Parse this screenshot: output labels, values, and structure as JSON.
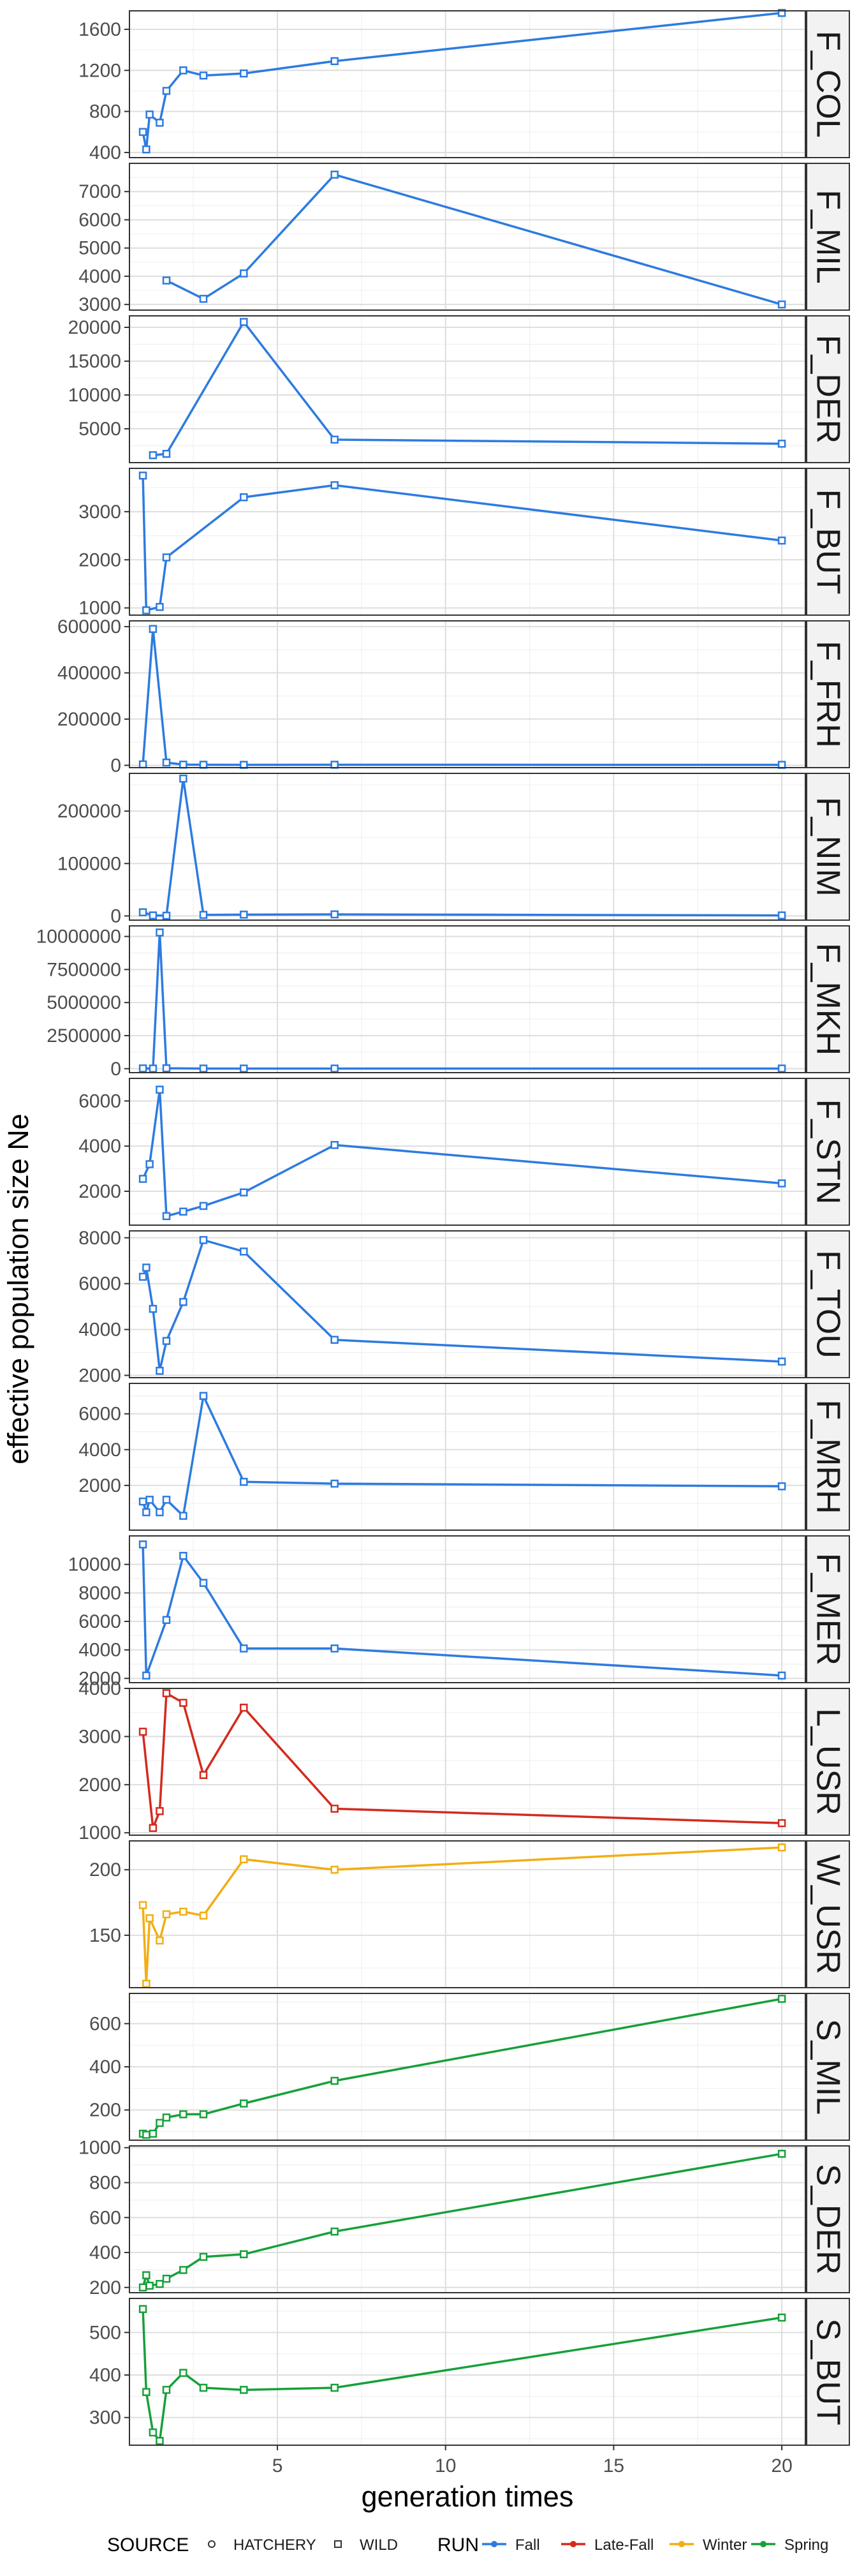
{
  "chart_data": {
    "type": "line",
    "layout": "faceted, vertical stack, one panel per population, shared x axis, free y scales",
    "xlabel": "generation times",
    "ylabel": "effective population size Ne",
    "x_ticks": [
      5,
      10,
      15,
      20
    ],
    "xlim": [
      0.6,
      20.7
    ],
    "grid": true,
    "legend": {
      "placement": "bottom",
      "source_title": "SOURCE",
      "source_entries": [
        {
          "label": "HATCHERY",
          "marker": "circle"
        },
        {
          "label": "WILD",
          "marker": "square"
        }
      ],
      "run_title": "RUN",
      "run_entries": [
        {
          "label": "Fall",
          "color": "#2D7BE0"
        },
        {
          "label": "Late-Fall",
          "color": "#D42A1E"
        },
        {
          "label": "Winter",
          "color": "#F2AE14"
        },
        {
          "label": "Spring",
          "color": "#17A03A"
        }
      ]
    },
    "panels": [
      {
        "name": "F_COL",
        "run": "Fall",
        "y_ticks": [
          400,
          800,
          1200,
          1600
        ],
        "ylim": [
          350,
          1780
        ],
        "points": [
          [
            1.0,
            600
          ],
          [
            1.1,
            430
          ],
          [
            1.2,
            770
          ],
          [
            1.5,
            690
          ],
          [
            1.7,
            1000
          ],
          [
            2.2,
            1200
          ],
          [
            2.8,
            1150
          ],
          [
            4.0,
            1170
          ],
          [
            6.7,
            1290
          ],
          [
            20.0,
            1760
          ]
        ]
      },
      {
        "name": "F_MIL",
        "run": "Fall",
        "y_ticks": [
          3000,
          4000,
          5000,
          6000,
          7000
        ],
        "ylim": [
          2800,
          8000
        ],
        "points": [
          [
            1.7,
            3850
          ],
          [
            2.8,
            3200
          ],
          [
            4.0,
            4100
          ],
          [
            6.7,
            7600
          ],
          [
            20.0,
            3000
          ]
        ]
      },
      {
        "name": "F_DER",
        "run": "Fall",
        "y_ticks": [
          5000,
          10000,
          15000,
          20000
        ],
        "ylim": [
          0,
          21700
        ],
        "points": [
          [
            1.3,
            1100
          ],
          [
            1.7,
            1300
          ],
          [
            4.0,
            20800
          ],
          [
            6.7,
            3400
          ],
          [
            20.0,
            2800
          ]
        ]
      },
      {
        "name": "F_BUT",
        "run": "Fall",
        "y_ticks": [
          1000,
          2000,
          3000
        ],
        "ylim": [
          850,
          3900
        ],
        "points": [
          [
            1.0,
            3750
          ],
          [
            1.1,
            950
          ],
          [
            1.5,
            1020
          ],
          [
            1.7,
            2050
          ],
          [
            4.0,
            3300
          ],
          [
            6.7,
            3550
          ],
          [
            20.0,
            2400
          ]
        ]
      },
      {
        "name": "F_FRH",
        "run": "Fall",
        "y_ticks": [
          0,
          200000,
          400000,
          600000
        ],
        "ylim": [
          -10000,
          625000
        ],
        "points": [
          [
            1.0,
            4000
          ],
          [
            1.3,
            590000
          ],
          [
            1.7,
            12000
          ],
          [
            2.2,
            3000
          ],
          [
            2.8,
            2500
          ],
          [
            4.0,
            2000
          ],
          [
            6.7,
            2500
          ],
          [
            20.0,
            2000
          ]
        ]
      },
      {
        "name": "F_NIM",
        "run": "Fall",
        "y_ticks": [
          0,
          100000,
          200000
        ],
        "ylim": [
          -8000,
          272000
        ],
        "points": [
          [
            1.0,
            7000
          ],
          [
            1.3,
            1000
          ],
          [
            1.7,
            500
          ],
          [
            2.2,
            262000
          ],
          [
            2.8,
            2000
          ],
          [
            4.0,
            2500
          ],
          [
            6.7,
            3000
          ],
          [
            20.0,
            1000
          ]
        ]
      },
      {
        "name": "F_MKH",
        "run": "Fall",
        "y_ticks": [
          0,
          2500000,
          5000000,
          7500000,
          10000000
        ],
        "ylim": [
          -300000,
          10800000
        ],
        "points": [
          [
            1.0,
            20000
          ],
          [
            1.3,
            10000
          ],
          [
            1.5,
            10300000
          ],
          [
            1.7,
            30000
          ],
          [
            2.8,
            10000
          ],
          [
            4.0,
            10000
          ],
          [
            6.7,
            10000
          ],
          [
            20.0,
            10000
          ]
        ]
      },
      {
        "name": "F_STN",
        "run": "Fall",
        "y_ticks": [
          2000,
          4000,
          6000
        ],
        "ylim": [
          500,
          7000
        ],
        "points": [
          [
            1.0,
            2550
          ],
          [
            1.2,
            3200
          ],
          [
            1.5,
            6500
          ],
          [
            1.7,
            900
          ],
          [
            2.2,
            1100
          ],
          [
            2.8,
            1350
          ],
          [
            4.0,
            1950
          ],
          [
            6.7,
            4050
          ],
          [
            20.0,
            2350
          ]
        ]
      },
      {
        "name": "F_TOU",
        "run": "Fall",
        "y_ticks": [
          2000,
          4000,
          6000,
          8000
        ],
        "ylim": [
          1900,
          8300
        ],
        "points": [
          [
            1.0,
            6300
          ],
          [
            1.1,
            6700
          ],
          [
            1.3,
            4900
          ],
          [
            1.5,
            2200
          ],
          [
            1.7,
            3500
          ],
          [
            2.2,
            5200
          ],
          [
            2.8,
            7900
          ],
          [
            4.0,
            7400
          ],
          [
            6.7,
            3550
          ],
          [
            20.0,
            2600
          ]
        ]
      },
      {
        "name": "F_MRH",
        "run": "Fall",
        "y_ticks": [
          2000,
          4000,
          6000
        ],
        "ylim": [
          -500,
          7700
        ],
        "points": [
          [
            1.0,
            1100
          ],
          [
            1.1,
            500
          ],
          [
            1.2,
            1200
          ],
          [
            1.5,
            500
          ],
          [
            1.7,
            1200
          ],
          [
            2.2,
            300
          ],
          [
            2.8,
            7000
          ],
          [
            4.0,
            2200
          ],
          [
            6.7,
            2100
          ],
          [
            20.0,
            1950
          ]
        ]
      },
      {
        "name": "F_MER",
        "run": "Fall",
        "y_ticks": [
          2000,
          4000,
          6000,
          8000,
          10000
        ],
        "ylim": [
          1700,
          12000
        ],
        "points": [
          [
            1.0,
            11400
          ],
          [
            1.1,
            2200
          ],
          [
            1.7,
            6100
          ],
          [
            2.2,
            10600
          ],
          [
            2.8,
            8700
          ],
          [
            4.0,
            4100
          ],
          [
            6.7,
            4100
          ],
          [
            20.0,
            2200
          ]
        ]
      },
      {
        "name": "L_USR",
        "run": "Late-Fall",
        "y_ticks": [
          1000,
          2000,
          3000,
          4000
        ],
        "ylim": [
          950,
          4000
        ],
        "points": [
          [
            1.0,
            3100
          ],
          [
            1.3,
            1100
          ],
          [
            1.5,
            1450
          ],
          [
            1.7,
            3900
          ],
          [
            2.2,
            3700
          ],
          [
            2.8,
            2200
          ],
          [
            4.0,
            3600
          ],
          [
            6.7,
            1500
          ],
          [
            20.0,
            1200
          ]
        ]
      },
      {
        "name": "W_USR",
        "run": "Winter",
        "y_ticks": [
          150,
          200
        ],
        "ylim": [
          110,
          222
        ],
        "points": [
          [
            1.0,
            173
          ],
          [
            1.1,
            113
          ],
          [
            1.2,
            163
          ],
          [
            1.5,
            146
          ],
          [
            1.7,
            166
          ],
          [
            2.2,
            168
          ],
          [
            2.8,
            165
          ],
          [
            4.0,
            208
          ],
          [
            6.7,
            200
          ],
          [
            20.0,
            217
          ]
        ]
      },
      {
        "name": "S_MIL",
        "run": "Spring",
        "y_ticks": [
          200,
          400,
          600
        ],
        "ylim": [
          60,
          740
        ],
        "points": [
          [
            1.0,
            90
          ],
          [
            1.1,
            85
          ],
          [
            1.3,
            90
          ],
          [
            1.5,
            140
          ],
          [
            1.7,
            165
          ],
          [
            2.2,
            180
          ],
          [
            2.8,
            180
          ],
          [
            4.0,
            230
          ],
          [
            6.7,
            335
          ],
          [
            20.0,
            715
          ]
        ]
      },
      {
        "name": "S_DER",
        "run": "Spring",
        "y_ticks": [
          200,
          400,
          600,
          800,
          1000
        ],
        "ylim": [
          170,
          1010
        ],
        "points": [
          [
            1.0,
            200
          ],
          [
            1.1,
            270
          ],
          [
            1.2,
            210
          ],
          [
            1.5,
            220
          ],
          [
            1.7,
            250
          ],
          [
            2.2,
            300
          ],
          [
            2.8,
            375
          ],
          [
            4.0,
            390
          ],
          [
            6.7,
            520
          ],
          [
            20.0,
            965
          ]
        ]
      },
      {
        "name": "S_BUT",
        "run": "Spring",
        "y_ticks": [
          300,
          400,
          500
        ],
        "ylim": [
          235,
          580
        ],
        "points": [
          [
            1.0,
            555
          ],
          [
            1.1,
            360
          ],
          [
            1.3,
            265
          ],
          [
            1.5,
            245
          ],
          [
            1.7,
            365
          ],
          [
            2.2,
            405
          ],
          [
            2.8,
            370
          ],
          [
            4.0,
            365
          ],
          [
            6.7,
            370
          ],
          [
            20.0,
            535
          ]
        ]
      }
    ]
  }
}
